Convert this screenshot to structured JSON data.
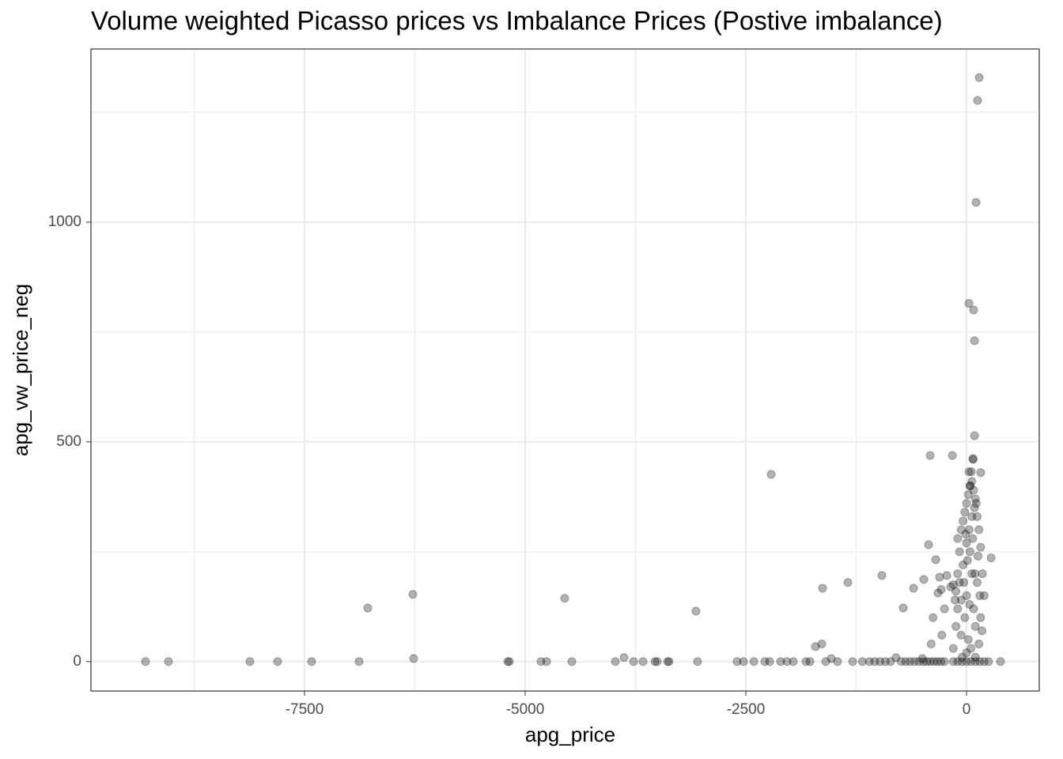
{
  "chart_data": {
    "type": "scatter",
    "title": "Volume weighted Picasso prices vs Imbalance Prices (Postive imbalance)",
    "x_label": "apg_price",
    "y_label": "apg_vw_price_neg",
    "color": "#000000",
    "alpha": 0.3,
    "grid": true,
    "xlim": [
      -9919,
      824
    ],
    "ylim": [
      -67,
      1394
    ],
    "xticks": [
      -7500,
      -5000,
      -2500,
      0
    ],
    "yticks": [
      0,
      500,
      1000
    ],
    "x_minor_grid": [
      -8750,
      -6250,
      -3750,
      -1250
    ],
    "y_minor_grid": [
      250,
      750,
      1250
    ],
    "x": [
      -9301,
      -9041,
      -8118,
      -7805,
      -7419,
      -6882,
      -6783,
      -6272,
      -6263,
      -5197,
      -5179,
      -4821,
      -4758,
      -4471,
      -4552,
      -3978,
      -3880,
      -3772,
      -3665,
      -3530,
      -3504,
      -3387,
      -3369,
      -3047,
      -3065,
      -2599,
      -2527,
      -2410,
      -2285,
      -2231,
      -2213,
      -2106,
      -2034,
      -1962,
      -1819,
      -1774,
      -1711,
      -1640,
      -1631,
      -1595,
      -1532,
      -1461,
      -1344,
      -1290,
      -1180,
      -1100,
      -1040,
      -980,
      -920,
      -860,
      -800,
      -740,
      -690,
      -640,
      -590,
      -540,
      -490,
      -450,
      -410,
      -370,
      -330,
      -290,
      -250,
      -500,
      -959,
      -717,
      -600,
      -484,
      -430,
      -412,
      -349,
      -323,
      -305,
      -287,
      -224,
      -380,
      -400,
      -280,
      -250,
      -180,
      -150,
      -120,
      -100,
      -80,
      -60,
      -40,
      -20,
      0,
      20,
      40,
      60,
      80,
      100,
      120,
      140,
      160,
      180,
      200,
      -150,
      -120,
      -100,
      -80,
      -60,
      -40,
      -20,
      0,
      20,
      40,
      60,
      80,
      100,
      120,
      140,
      160,
      -50,
      0,
      50,
      100,
      -150,
      -100,
      -50,
      0,
      50,
      100,
      150,
      200,
      250,
      -100,
      -60,
      0,
      30,
      60,
      90,
      110,
      75,
      55,
      40,
      -10,
      10,
      70,
      130,
      -30,
      35,
      95,
      150,
      175,
      -130,
      27,
      81,
      90,
      125,
      143,
      108,
      90,
      161,
      278,
      385,
      -161,
      27,
      72
    ],
    "values": [
      0,
      0,
      0,
      0,
      0,
      0,
      122,
      153,
      7,
      0,
      0,
      0,
      0,
      0,
      144,
      0,
      9,
      0,
      0,
      0,
      0,
      0,
      0,
      0,
      115,
      0,
      0,
      0,
      0,
      0,
      426,
      0,
      0,
      0,
      0,
      0,
      34,
      40,
      167,
      0,
      7,
      0,
      180,
      0,
      0,
      0,
      0,
      0,
      0,
      0,
      9,
      0,
      0,
      0,
      0,
      0,
      0,
      0,
      0,
      0,
      0,
      0,
      0,
      7,
      196,
      122,
      167,
      187,
      266,
      469,
      232,
      156,
      192,
      164,
      196,
      100,
      40,
      60,
      120,
      170,
      175,
      160,
      280,
      250,
      300,
      320,
      340,
      360,
      380,
      400,
      410,
      390,
      370,
      330,
      300,
      260,
      200,
      150,
      30,
      80,
      120,
      180,
      60,
      220,
      100,
      150,
      50,
      250,
      200,
      120,
      80,
      180,
      40,
      100,
      10,
      20,
      30,
      10,
      0,
      0,
      0,
      0,
      0,
      0,
      0,
      0,
      0,
      200,
      140,
      270,
      300,
      330,
      350,
      360,
      460,
      432,
      400,
      290,
      230,
      280,
      240,
      180,
      130,
      200,
      150,
      70,
      140,
      815,
      800,
      730,
      1277,
      1329,
      1045,
      514,
      430,
      236,
      0,
      469,
      432,
      462
    ]
  }
}
